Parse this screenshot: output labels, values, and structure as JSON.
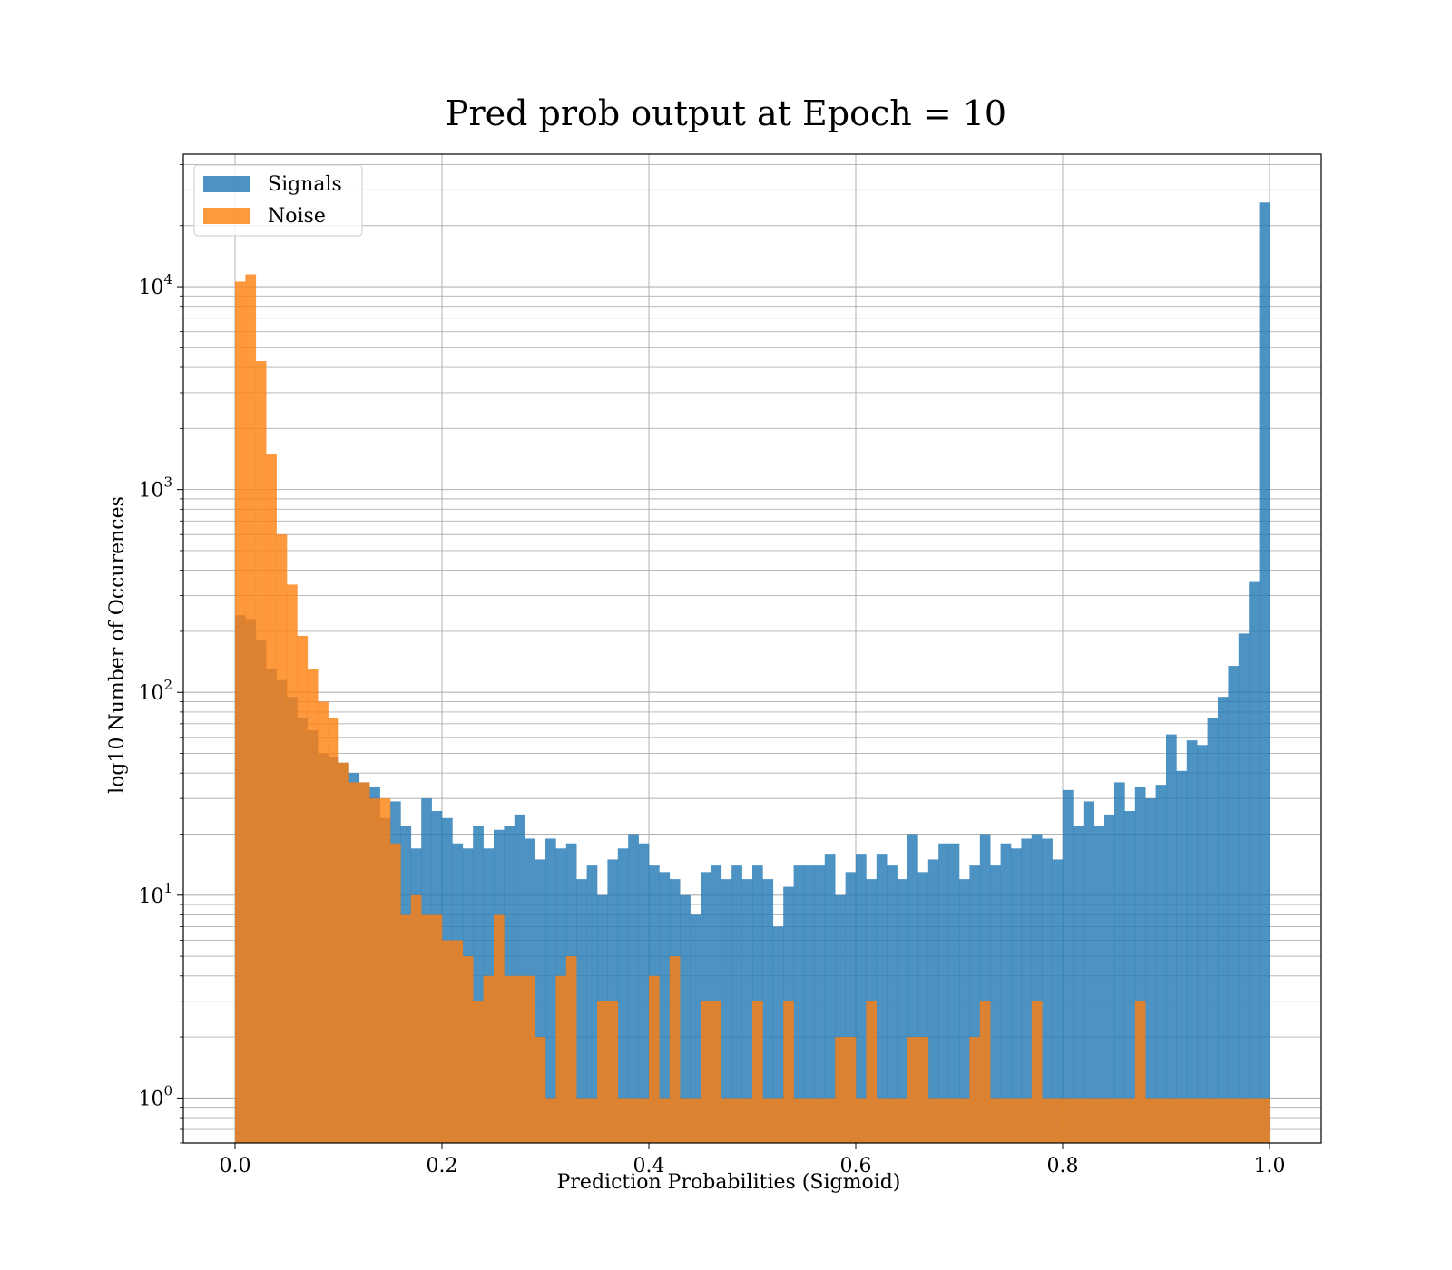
{
  "chart_data": {
    "type": "bar",
    "title": "Pred prob output at Epoch = 10",
    "xlabel": "Prediction Probabilities (Sigmoid)",
    "ylabel": "log10 Number of Occurences",
    "yscale": "log",
    "xlim": [
      -0.05,
      1.05
    ],
    "ylim": [
      0.6,
      45000
    ],
    "x_ticks": [
      0.0,
      0.2,
      0.4,
      0.6,
      0.8,
      1.0
    ],
    "x_tick_labels": [
      "0.0",
      "0.2",
      "0.4",
      "0.6",
      "0.8",
      "1.0"
    ],
    "y_ticks": [
      1,
      10,
      100,
      1000,
      10000
    ],
    "y_tick_bases": [
      "10",
      "10",
      "10",
      "10",
      "10"
    ],
    "y_tick_exponents": [
      "0",
      "1",
      "2",
      "3",
      "4"
    ],
    "grid": true,
    "legend_position": "top-left",
    "bin_edges_start": 0.0,
    "bin_width": 0.01,
    "bins": 100,
    "series": [
      {
        "name": "Signals",
        "color": "#1f77b4",
        "values": [
          240,
          230,
          180,
          130,
          115,
          95,
          75,
          65,
          50,
          48,
          45,
          40,
          36,
          34,
          24,
          29,
          22,
          17,
          30,
          26,
          24,
          18,
          17,
          22,
          17,
          21,
          22,
          25,
          19,
          15,
          19,
          17,
          18,
          12,
          14,
          10,
          15,
          17,
          20,
          18,
          14,
          13,
          12,
          10,
          8,
          13,
          14,
          12,
          14,
          12,
          14,
          12,
          7,
          11,
          14,
          14,
          14,
          16,
          10,
          13,
          16,
          12,
          16,
          14,
          12,
          20,
          13,
          15,
          18,
          18,
          12,
          14,
          20,
          14,
          18,
          17,
          19,
          20,
          19,
          15,
          33,
          22,
          29,
          22,
          25,
          36,
          26,
          34,
          30,
          35,
          62,
          41,
          58,
          55,
          75,
          95,
          135,
          195,
          350,
          26000
        ]
      },
      {
        "name": "Noise",
        "color": "#ff7f0e",
        "values": [
          10600,
          11500,
          4300,
          1500,
          600,
          340,
          190,
          130,
          90,
          75,
          45,
          36,
          36,
          30,
          30,
          18,
          8,
          10,
          8,
          8,
          6,
          6,
          5,
          3,
          4,
          8,
          4,
          4,
          4,
          2,
          1,
          4,
          5,
          1,
          1,
          3,
          3,
          1,
          1,
          1,
          4,
          1,
          5,
          1,
          1,
          3,
          3,
          1,
          1,
          1,
          3,
          1,
          1,
          3,
          1,
          1,
          1,
          1,
          2,
          2,
          1,
          3,
          1,
          1,
          1,
          2,
          2,
          1,
          1,
          1,
          1,
          2,
          3,
          1,
          1,
          1,
          1,
          3,
          1,
          1,
          1,
          1,
          1,
          1,
          1,
          1,
          1,
          3,
          1,
          1,
          1,
          1,
          1,
          1,
          1,
          1,
          1,
          1,
          1,
          1
        ]
      }
    ]
  }
}
